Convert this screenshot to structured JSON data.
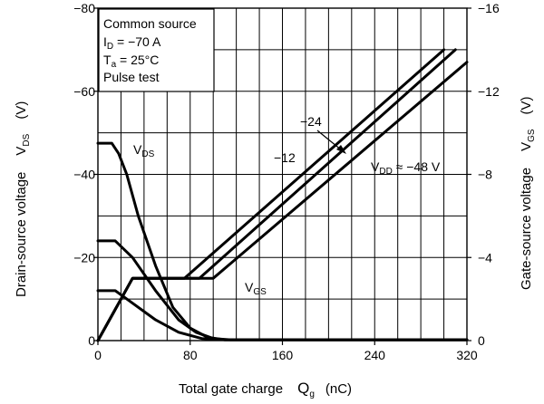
{
  "chart_data": {
    "type": "line",
    "x_axis": {
      "label": "Total gate charge",
      "symbol": "Q",
      "symbol_sub": "g",
      "unit": "(nC)",
      "range": [
        0,
        320
      ],
      "ticks": [
        0,
        80,
        160,
        240,
        320
      ],
      "tick_labels": [
        "0",
        "80",
        "160",
        "240",
        "320"
      ],
      "minor_grid_step": 20
    },
    "y_left": {
      "label": "Drain-source voltage",
      "symbol": "V",
      "symbol_sub": "DS",
      "unit": "(V)",
      "range": [
        0,
        -80
      ],
      "ticks": [
        0,
        -20,
        -40,
        -60,
        -80
      ],
      "tick_labels": [
        "0",
        "−20",
        "−40",
        "−60",
        "−80"
      ],
      "minor_grid_step": 10
    },
    "y_right": {
      "label": "Gate-source voltage",
      "symbol": "V",
      "symbol_sub": "GS",
      "unit": "(V)",
      "range": [
        0,
        -16
      ],
      "ticks": [
        0,
        -4,
        -8,
        -12,
        -16
      ],
      "tick_labels": [
        "0",
        "−4",
        "−8",
        "−12",
        "−16"
      ]
    },
    "grid": true,
    "conditions_box": {
      "line1": "Common source",
      "line2_prefix": "I",
      "line2_sub": "D",
      "line2_value": " = −70 A",
      "line3_prefix": "T",
      "line3_sub": "a",
      "line3_value": " = 25°C",
      "line4": "Pulse test"
    },
    "series": [
      {
        "axis": "left",
        "values": [
          [
            0,
            -47.5
          ],
          [
            12,
            -47.5
          ],
          [
            18,
            -45
          ],
          [
            25,
            -40
          ],
          [
            35,
            -30
          ],
          [
            50,
            -18
          ],
          [
            65,
            -8
          ],
          [
            80,
            -3
          ],
          [
            95,
            -0.8
          ],
          [
            110,
            -0.2
          ],
          [
            320,
            -0.2
          ]
        ]
      },
      {
        "axis": "left",
        "values": [
          [
            0,
            -24
          ],
          [
            15,
            -24
          ],
          [
            30,
            -20
          ],
          [
            50,
            -12
          ],
          [
            70,
            -5
          ],
          [
            85,
            -2
          ],
          [
            100,
            -0.5
          ],
          [
            115,
            -0.2
          ],
          [
            320,
            -0.2
          ]
        ]
      },
      {
        "axis": "left",
        "values": [
          [
            0,
            -12
          ],
          [
            15,
            -12
          ],
          [
            30,
            -9
          ],
          [
            50,
            -5
          ],
          [
            70,
            -2
          ],
          [
            90,
            -0.5
          ],
          [
            110,
            -0.2
          ],
          [
            320,
            -0.2
          ]
        ]
      },
      {
        "axis": "right",
        "values": [
          [
            0,
            0
          ],
          [
            30,
            -3
          ],
          [
            75,
            -3
          ],
          [
            300,
            -14
          ]
        ]
      },
      {
        "axis": "right",
        "values": [
          [
            0,
            0
          ],
          [
            30,
            -3
          ],
          [
            88,
            -3
          ],
          [
            310,
            -14
          ]
        ]
      },
      {
        "axis": "right",
        "values": [
          [
            0,
            0
          ],
          [
            30,
            -3
          ],
          [
            100,
            -3
          ],
          [
            320,
            -13.4
          ]
        ]
      }
    ],
    "annotations": {
      "vds_label": "V",
      "vds_label_sub": "DS",
      "vgs_label": "V",
      "vgs_label_sub": "GS",
      "vdd_label_prefix": "V",
      "vdd_label_sub": "DD",
      "vdd_label_value": " ≈ −48 V",
      "vdd_minus24": "−24",
      "vdd_minus12": "−12"
    }
  }
}
